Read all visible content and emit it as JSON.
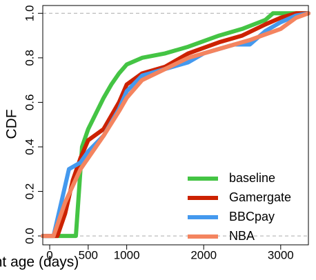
{
  "chart_data": {
    "type": "line",
    "xlabel": "account age (days)",
    "ylabel": "CDF",
    "xlim": [
      -90,
      3360
    ],
    "ylim": [
      -0.04,
      1.035
    ],
    "xticks": [
      0,
      500,
      1000,
      2000,
      3000
    ],
    "yticks": [
      {
        "value": 0,
        "label": "0.0"
      },
      0.2,
      0.4,
      0.6,
      0.8,
      {
        "value": 1,
        "label": "1.0"
      }
    ],
    "reference_lines": [
      0,
      1
    ],
    "legend": "bottom-right",
    "series": [
      {
        "name": "baseline",
        "color": "#44c444",
        "x": [
          -90,
          340,
          380,
          420,
          500,
          600,
          700,
          800,
          900,
          1000,
          1200,
          1500,
          1800,
          2200,
          2500,
          2800,
          2900,
          3360
        ],
        "values": [
          0,
          0,
          0.2,
          0.4,
          0.48,
          0.55,
          0.62,
          0.68,
          0.73,
          0.77,
          0.8,
          0.82,
          0.85,
          0.9,
          0.93,
          0.97,
          1.0,
          1.0
        ]
      },
      {
        "name": "Gamergate",
        "color": "#cc2200",
        "x": [
          -90,
          100,
          200,
          300,
          400,
          500,
          700,
          900,
          1000,
          1200,
          1500,
          1800,
          2200,
          2500,
          2800,
          3000,
          3200,
          3360
        ],
        "values": [
          0,
          0,
          0.1,
          0.25,
          0.35,
          0.43,
          0.48,
          0.6,
          0.68,
          0.73,
          0.76,
          0.82,
          0.87,
          0.9,
          0.95,
          0.98,
          1.0,
          1.0
        ]
      },
      {
        "name": "BBCpay",
        "color": "#4499ee",
        "x": [
          -90,
          50,
          150,
          250,
          400,
          500,
          700,
          900,
          1000,
          1200,
          1500,
          1800,
          2000,
          2400,
          2600,
          2800,
          3000,
          3200,
          3360
        ],
        "values": [
          0,
          0,
          0.15,
          0.3,
          0.33,
          0.38,
          0.45,
          0.57,
          0.65,
          0.72,
          0.75,
          0.78,
          0.82,
          0.86,
          0.86,
          0.92,
          0.96,
          0.99,
          1.0
        ]
      },
      {
        "name": "NBA",
        "color": "#f4845f",
        "x": [
          -90,
          50,
          200,
          400,
          500,
          700,
          900,
          1000,
          1200,
          1500,
          1800,
          2200,
          2600,
          3000,
          3200,
          3360
        ],
        "values": [
          0,
          0,
          0.15,
          0.3,
          0.35,
          0.45,
          0.56,
          0.62,
          0.7,
          0.75,
          0.8,
          0.84,
          0.88,
          0.93,
          0.98,
          1.0
        ]
      }
    ]
  }
}
